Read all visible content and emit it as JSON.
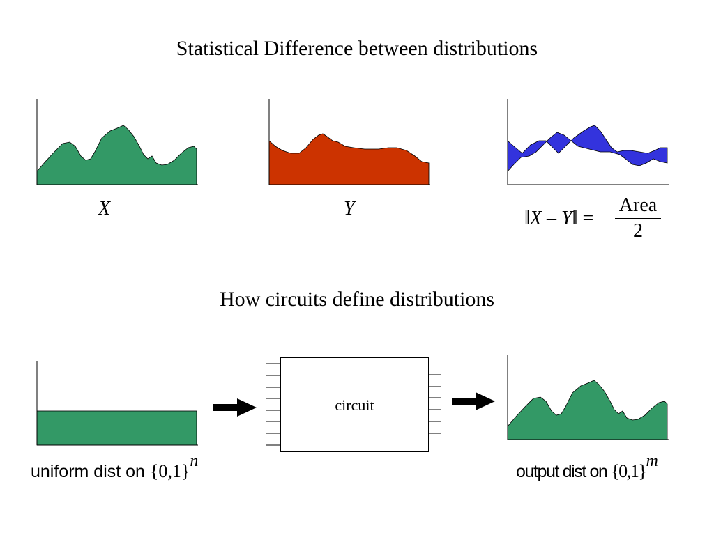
{
  "section1": {
    "title": "Statistical Difference between distributions",
    "label_x": "X",
    "label_y": "Y",
    "formula": {
      "norm_open": "‖",
      "var_x": "X",
      "minus": " – ",
      "var_y": "Y",
      "norm_close": "‖",
      "equals": " = ",
      "numerator": "Area",
      "denominator": "2"
    }
  },
  "section2": {
    "title": "How circuits define distributions",
    "circuit_label": "circuit",
    "input_caption": {
      "text": "uniform dist on ",
      "set": "{0,1}",
      "exponent": "n"
    },
    "output_caption": {
      "text": "output dist on ",
      "set": "{0,1}",
      "exponent": "m"
    }
  },
  "colors": {
    "x_distribution": "#339966",
    "y_distribution": "#cc3300",
    "difference": "#3333dd",
    "uniform": "#339966",
    "output": "#339966",
    "axes": "#000000",
    "arrow": "#000000"
  },
  "icons": {
    "arrow": "right-arrow-icon"
  }
}
